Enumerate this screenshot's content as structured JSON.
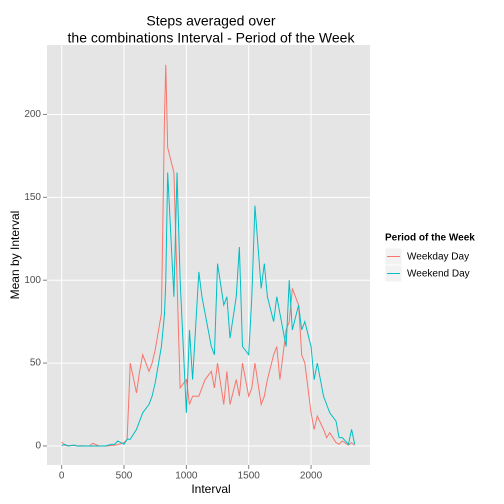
{
  "chart_data": {
    "type": "line",
    "title": [
      "Steps averaged over",
      "the combinations Interval - Period of the Week"
    ],
    "x_label": "Interval",
    "y_label": "Mean by Interval",
    "legend_title": "Period of the Week",
    "legend_position": "right",
    "grid": true,
    "x": [
      0,
      25,
      50,
      100,
      125,
      150,
      200,
      225,
      250,
      300,
      325,
      350,
      400,
      425,
      450,
      500,
      525,
      550,
      600,
      625,
      650,
      700,
      725,
      750,
      800,
      825,
      835,
      850,
      900,
      925,
      950,
      1000,
      1025,
      1050,
      1100,
      1125,
      1150,
      1200,
      1225,
      1250,
      1300,
      1325,
      1350,
      1400,
      1425,
      1450,
      1500,
      1525,
      1550,
      1600,
      1625,
      1650,
      1700,
      1725,
      1750,
      1800,
      1825,
      1850,
      1900,
      1925,
      1950,
      2000,
      2025,
      2050,
      2100,
      2125,
      2150,
      2200,
      2225,
      2250,
      2300,
      2325,
      2350
    ],
    "series": [
      {
        "name": "Weekday Day",
        "color": "#F8766D",
        "values": [
          2.3,
          0.3,
          0.2,
          0.4,
          0,
          0.1,
          0,
          0,
          1.6,
          0,
          0,
          0,
          0.3,
          0.4,
          0.8,
          2,
          4,
          50,
          32,
          45,
          55,
          45,
          50,
          58,
          80,
          200,
          230,
          180,
          165,
          100,
          35,
          40,
          25,
          30,
          30,
          35,
          40,
          45,
          35,
          50,
          25,
          45,
          25,
          40,
          30,
          50,
          30,
          35,
          50,
          25,
          30,
          40,
          55,
          60,
          40,
          70,
          75,
          95,
          85,
          55,
          50,
          20,
          10,
          18,
          10,
          5,
          8,
          2,
          1,
          3,
          0.5,
          2,
          0.3
        ]
      },
      {
        "name": "Weekend Day",
        "color": "#00BFC4",
        "values": [
          0.2,
          1,
          0,
          0.5,
          0,
          0,
          0,
          0,
          0,
          0,
          0,
          0,
          1,
          1,
          3,
          1,
          4,
          4,
          10,
          15,
          20,
          25,
          30,
          38,
          60,
          80,
          100,
          165,
          90,
          165,
          100,
          20,
          70,
          40,
          105,
          90,
          80,
          60,
          55,
          110,
          85,
          90,
          65,
          90,
          120,
          60,
          55,
          90,
          145,
          95,
          110,
          90,
          75,
          90,
          80,
          60,
          100,
          70,
          85,
          70,
          75,
          60,
          40,
          50,
          30,
          25,
          20,
          15,
          5,
          5,
          1,
          10,
          1
        ]
      }
    ],
    "xlim": [
      -117.75,
      2472.75
    ],
    "xticks": [
      0,
      500,
      1000,
      1500,
      2000
    ],
    "ylim": [
      -11.5,
      241.9
    ],
    "yticks": [
      0,
      50,
      100,
      150,
      200
    ]
  }
}
